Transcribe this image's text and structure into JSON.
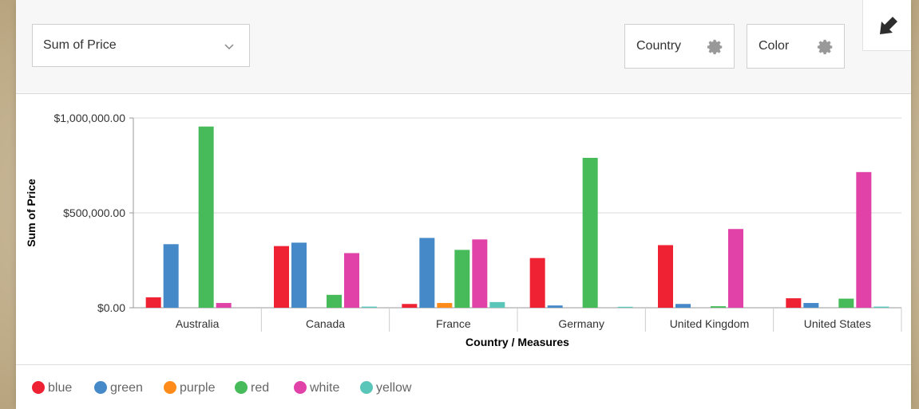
{
  "toolbar": {
    "measure_select": "Sum of Price",
    "country_button": "Country",
    "color_button": "Color"
  },
  "chart_data": {
    "type": "bar",
    "xlabel": "Country / Measures",
    "ylabel": "Sum of Price",
    "ylim": [
      0,
      1000000
    ],
    "yticks": [
      "$0.00",
      "$500,000.00",
      "$1,000,000.00"
    ],
    "grid": true,
    "legend_position": "bottom-left",
    "categories": [
      "Australia",
      "Canada",
      "France",
      "Germany",
      "United Kingdom",
      "United States"
    ],
    "series": [
      {
        "name": "blue",
        "color": "#ee2233",
        "values": [
          55000,
          325000,
          20000,
          262000,
          330000,
          50000
        ]
      },
      {
        "name": "green",
        "color": "#4589c8",
        "values": [
          335000,
          343000,
          368000,
          12000,
          20000,
          25000
        ]
      },
      {
        "name": "purple",
        "color": "#ff8c1a",
        "values": [
          0,
          0,
          25000,
          0,
          0,
          0
        ]
      },
      {
        "name": "red",
        "color": "#47bb5a",
        "values": [
          955000,
          68000,
          305000,
          790000,
          8000,
          48000
        ]
      },
      {
        "name": "white",
        "color": "#e042a8",
        "values": [
          25000,
          288000,
          360000,
          0,
          415000,
          715000
        ]
      },
      {
        "name": "yellow",
        "color": "#5ac5b9",
        "values": [
          0,
          6000,
          30000,
          5000,
          0,
          6000
        ]
      }
    ]
  }
}
